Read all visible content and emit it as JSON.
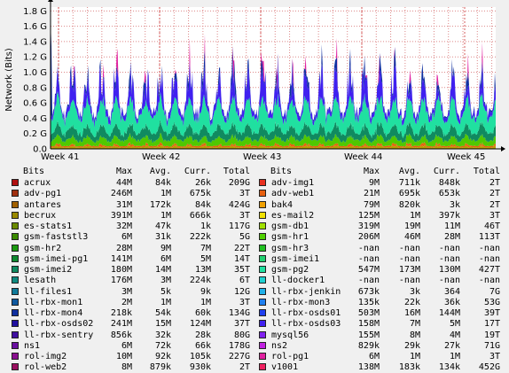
{
  "chart_data": {
    "type": "area",
    "ylabel": "Network (Bits)",
    "yticks": [
      "0.0",
      "0.2 G",
      "0.4 G",
      "0.6 G",
      "0.8 G",
      "1.0 G",
      "1.2 G",
      "1.4 G",
      "1.6 G",
      "1.8 G"
    ],
    "ylim": [
      0,
      1.85
    ],
    "xticks": [
      "Week 41",
      "Week 42",
      "Week 43",
      "Week 44",
      "Week 45"
    ],
    "grid": true,
    "legend_columns": [
      "Bits",
      "Max",
      "Avg.",
      "Curr.",
      "Total"
    ],
    "series": [
      {
        "name": "acrux",
        "max": "44M",
        "avg": "84k",
        "curr": "26k",
        "total": "209G",
        "color": "#b01010"
      },
      {
        "name": "adv-pg1",
        "max": "246M",
        "avg": "1M",
        "curr": "675k",
        "total": "3T",
        "color": "#a03010"
      },
      {
        "name": "antares",
        "max": "31M",
        "avg": "172k",
        "curr": "84k",
        "total": "424G",
        "color": "#a06000"
      },
      {
        "name": "becrux",
        "max": "391M",
        "avg": "1M",
        "curr": "666k",
        "total": "3T",
        "color": "#9a8a00"
      },
      {
        "name": "es-stats1",
        "max": "32M",
        "avg": "47k",
        "curr": "1k",
        "total": "117G",
        "color": "#6a8a00"
      },
      {
        "name": "gsm-faststl3",
        "max": "6M",
        "avg": "31k",
        "curr": "222k",
        "total": "5G",
        "color": "#3a8a00"
      },
      {
        "name": "gsm-hr2",
        "max": "28M",
        "avg": "9M",
        "curr": "7M",
        "total": "22T",
        "color": "#1a9a10"
      },
      {
        "name": "gsm-imei-pg1",
        "max": "141M",
        "avg": "6M",
        "curr": "5M",
        "total": "14T",
        "color": "#108a30"
      },
      {
        "name": "gsm-imei2",
        "max": "180M",
        "avg": "14M",
        "curr": "13M",
        "total": "35T",
        "color": "#108a60"
      },
      {
        "name": "lesath",
        "max": "176M",
        "avg": "3M",
        "curr": "224k",
        "total": "6T",
        "color": "#108a80"
      },
      {
        "name": "ll-files1",
        "max": "3M",
        "avg": "5k",
        "curr": "9k",
        "total": "12G",
        "color": "#107a9a"
      },
      {
        "name": "ll-rbx-mon1",
        "max": "2M",
        "avg": "1M",
        "curr": "1M",
        "total": "3T",
        "color": "#105aa0"
      },
      {
        "name": "ll-rbx-mon4",
        "max": "218k",
        "avg": "54k",
        "curr": "60k",
        "total": "134G",
        "color": "#1030a0"
      },
      {
        "name": "ll-rbx-osds02",
        "max": "241M",
        "avg": "15M",
        "curr": "124M",
        "total": "37T",
        "color": "#2010a0"
      },
      {
        "name": "ll-rbx-sentry",
        "max": "856k",
        "avg": "32k",
        "curr": "28k",
        "total": "80G",
        "color": "#4010a0"
      },
      {
        "name": "ns1",
        "max": "6M",
        "avg": "72k",
        "curr": "66k",
        "total": "178G",
        "color": "#6a10a0"
      },
      {
        "name": "rol-img2",
        "max": "10M",
        "avg": "92k",
        "curr": "105k",
        "total": "227G",
        "color": "#8a1090"
      },
      {
        "name": "rol-web2",
        "max": "8M",
        "avg": "879k",
        "curr": "930k",
        "total": "2T",
        "color": "#9a1060"
      },
      {
        "name": "adv-img1",
        "max": "9M",
        "avg": "711k",
        "curr": "848k",
        "total": "2T",
        "color": "#e83020"
      },
      {
        "name": "adv-web1",
        "max": "21M",
        "avg": "695k",
        "curr": "653k",
        "total": "2T",
        "color": "#e86010"
      },
      {
        "name": "bak4",
        "max": "79M",
        "avg": "820k",
        "curr": "3k",
        "total": "2T",
        "color": "#f0a000"
      },
      {
        "name": "es-mail2",
        "max": "125M",
        "avg": "1M",
        "curr": "397k",
        "total": "3T",
        "color": "#f0e000"
      },
      {
        "name": "gsm-db1",
        "max": "319M",
        "avg": "19M",
        "curr": "11M",
        "total": "46T",
        "color": "#a0e000"
      },
      {
        "name": "gsm-hr1",
        "max": "206M",
        "avg": "46M",
        "curr": "28M",
        "total": "113T",
        "color": "#50d000"
      },
      {
        "name": "gsm-hr3",
        "max": "-nan",
        "avg": "-nan",
        "curr": "-nan",
        "total": "-nan",
        "color": "#20c020"
      },
      {
        "name": "gsm-imei1",
        "max": "-nan",
        "avg": "-nan",
        "curr": "-nan",
        "total": "-nan",
        "color": "#20d070"
      },
      {
        "name": "gsm-pg2",
        "max": "547M",
        "avg": "173M",
        "curr": "130M",
        "total": "427T",
        "color": "#20e0a0"
      },
      {
        "name": "ll-docker1",
        "max": "-nan",
        "avg": "-nan",
        "curr": "-nan",
        "total": "-nan",
        "color": "#20d0d0"
      },
      {
        "name": "ll-rbx-jenkin",
        "max": "673k",
        "avg": "3k",
        "curr": "364",
        "total": "7G",
        "color": "#20b0e8"
      },
      {
        "name": "ll-rbx-mon3",
        "max": "135k",
        "avg": "22k",
        "curr": "36k",
        "total": "53G",
        "color": "#2080f0"
      },
      {
        "name": "ll-rbx-osds01",
        "max": "503M",
        "avg": "16M",
        "curr": "144M",
        "total": "39T",
        "color": "#2040f0"
      },
      {
        "name": "ll-rbx-osds03",
        "max": "158M",
        "avg": "7M",
        "curr": "5M",
        "total": "17T",
        "color": "#4020f0"
      },
      {
        "name": "mysql56",
        "max": "155M",
        "avg": "8M",
        "curr": "4M",
        "total": "19T",
        "color": "#8020f0"
      },
      {
        "name": "ns2",
        "max": "829k",
        "avg": "29k",
        "curr": "27k",
        "total": "71G",
        "color": "#c020e0"
      },
      {
        "name": "rol-pg1",
        "max": "6M",
        "avg": "1M",
        "curr": "1M",
        "total": "3T",
        "color": "#e020a0"
      },
      {
        "name": "v1001",
        "max": "138M",
        "avg": "183k",
        "curr": "134k",
        "total": "452G",
        "color": "#f02060"
      }
    ]
  }
}
